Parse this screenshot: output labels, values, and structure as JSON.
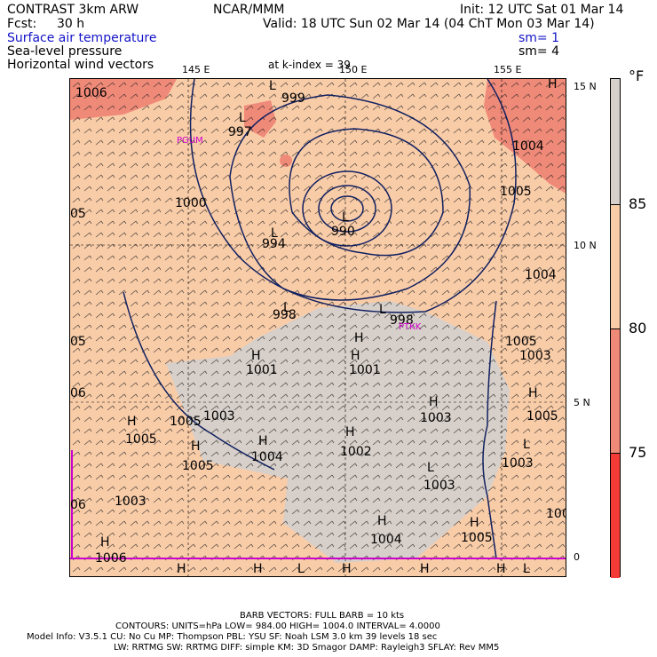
{
  "header": {
    "model": "CONTRAST  3km ARW",
    "center": "NCAR/MMM",
    "init": "Init: 12 UTC Sat 01 Mar 14",
    "fcst_label": "Fcst:",
    "fcst_value": "30 h",
    "valid": "Valid: 18 UTC Sun 02 Mar 14 (04 ChT Mon 03 Mar 14)"
  },
  "fields": [
    {
      "label": "Surface air temperature",
      "smooth": "sm= 1",
      "color": "#1414c8"
    },
    {
      "label": "Sea-level pressure",
      "smooth": "sm= 4",
      "color": "#000000"
    },
    {
      "label": "Horizontal wind vectors",
      "level": "at k-index =   39",
      "color": "#000000"
    }
  ],
  "axes": {
    "lon_labels": [
      "145 E",
      "150 E",
      "155 E"
    ],
    "lat_labels": [
      "15 N",
      "10 N",
      "5 N",
      "0"
    ]
  },
  "legend": {
    "unit": "°F",
    "ticks": [
      "85",
      "80",
      "75"
    ],
    "colors": {
      "gray": "#d7cfc9",
      "peach": "#f9cca8",
      "salmon": "#f08a78",
      "red": "#f53b36"
    }
  },
  "pressure_labels": [
    {
      "t": "1006"
    },
    {
      "t": "999"
    },
    {
      "t": "997"
    },
    {
      "t": "1000"
    },
    {
      "t": "994"
    },
    {
      "t": "990"
    },
    {
      "t": "998"
    },
    {
      "t": "998"
    },
    {
      "t": "1001"
    },
    {
      "t": "1001"
    },
    {
      "t": "1005"
    },
    {
      "t": "1005"
    },
    {
      "t": "1004"
    },
    {
      "t": "1002"
    },
    {
      "t": "1003"
    },
    {
      "t": "1003"
    },
    {
      "t": "1003"
    },
    {
      "t": "1003"
    },
    {
      "t": "1004"
    },
    {
      "t": "1005"
    },
    {
      "t": "1006"
    },
    {
      "t": "1004"
    },
    {
      "t": "1005"
    },
    {
      "t": "1005"
    },
    {
      "t": "1004"
    },
    {
      "t": "1003"
    },
    {
      "t": "1005"
    },
    {
      "t": "1003"
    },
    {
      "t": "100"
    },
    {
      "t": "1005"
    },
    {
      "t": "05"
    },
    {
      "t": "05"
    },
    {
      "t": "06"
    },
    {
      "t": "06"
    }
  ],
  "hl_markers": [
    {
      "t": "L"
    },
    {
      "t": "L"
    },
    {
      "t": "L"
    },
    {
      "t": "L"
    },
    {
      "t": "L"
    },
    {
      "t": "L"
    },
    {
      "t": "L"
    },
    {
      "t": "H"
    },
    {
      "t": "H"
    },
    {
      "t": "H"
    },
    {
      "t": "H"
    },
    {
      "t": "H"
    },
    {
      "t": "H"
    },
    {
      "t": "H"
    },
    {
      "t": "H"
    },
    {
      "t": "H"
    },
    {
      "t": "H"
    },
    {
      "t": "H"
    },
    {
      "t": "H"
    },
    {
      "t": "H"
    },
    {
      "t": "L"
    },
    {
      "t": "H"
    },
    {
      "t": "H"
    },
    {
      "t": "H"
    },
    {
      "t": "H"
    },
    {
      "t": "L"
    },
    {
      "t": "L"
    },
    {
      "t": "H"
    }
  ],
  "stations": [
    "PGUM",
    "PTKK"
  ],
  "footer": {
    "barb": "BARB VECTORS:  FULL BARB = 10 kts",
    "contours": "CONTOURS:  UNITS=hPa  LOW=  984.00       HIGH=  1004.0       INTERVAL=    4.0000",
    "model_info_1": "Model Info: V3.5.1     CU: No Cu    MP: Thompson     PBL: YSU      SF: Noah LSM     3.0 km   39 levels    18 sec",
    "model_info_2": "LW: RRTMG    SW: RRTMG   DIFF: simple KM: 3D Smagor DAMP: Rayleigh3  SFLAY: Rev MM5"
  }
}
